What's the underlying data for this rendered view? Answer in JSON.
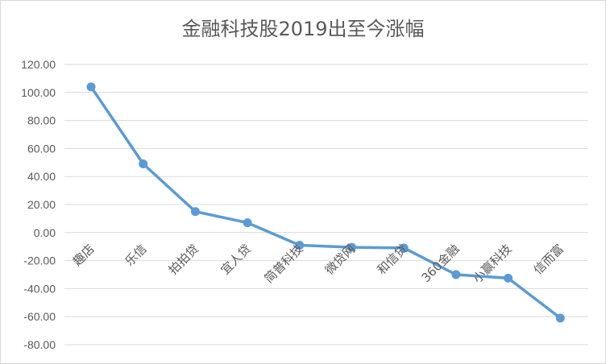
{
  "chart_data": {
    "type": "line",
    "title": "金融科技股2019出至今涨幅",
    "xlabel": "",
    "ylabel": "",
    "categories": [
      "趣店",
      "乐信",
      "拍拍贷",
      "宜人贷",
      "简普科技",
      "微贷网",
      "和信贷",
      "360金融",
      "小赢科技",
      "信而富"
    ],
    "series": [
      {
        "values": [
          104,
          49,
          15,
          7,
          -9,
          -10.5,
          -11,
          -30,
          -32.5,
          -61
        ]
      }
    ],
    "yticks": [
      "120.00",
      "100.00",
      "80.00",
      "60.00",
      "40.00",
      "20.00",
      "0.00",
      "-20.00",
      "-40.00",
      "-60.00",
      "-80.00"
    ],
    "ylim": [
      -80,
      120
    ],
    "grid": true,
    "legend": "none",
    "colors": {
      "line": "#5b9bd5",
      "grid": "#d9d9d9",
      "text": "#595959"
    }
  }
}
